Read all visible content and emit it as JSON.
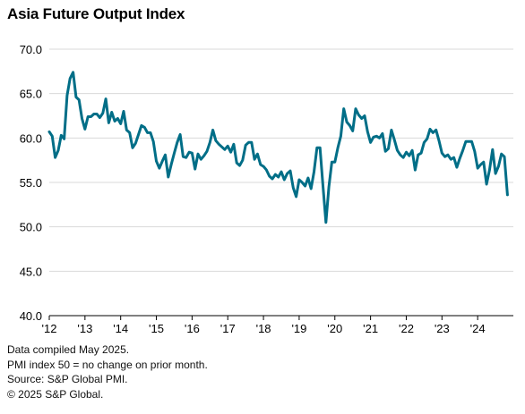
{
  "notes": [
    "Data compiled May 2025.",
    "PMI index 50 = no change on prior month.",
    "Source: S&P Global PMI.",
    "© 2025 S&P Global."
  ],
  "colors": {
    "line": "#006e87",
    "grid": "#d9d9d9",
    "axis": "#000000"
  },
  "chart_data": {
    "type": "line",
    "title": "Asia Future Output Index",
    "xlabel": "",
    "ylabel": "",
    "ylim": [
      40,
      70
    ],
    "xlim": [
      2012.0,
      2025.0
    ],
    "y_ticks": [
      "40.0",
      "45.0",
      "50.0",
      "55.0",
      "60.0",
      "65.0",
      "70.0"
    ],
    "x_ticks": [
      {
        "label": "'12",
        "x": 2012
      },
      {
        "label": "'13",
        "x": 2013
      },
      {
        "label": "'14",
        "x": 2014
      },
      {
        "label": "'15",
        "x": 2015
      },
      {
        "label": "'16",
        "x": 2016
      },
      {
        "label": "'17",
        "x": 2017
      },
      {
        "label": "'18",
        "x": 2018
      },
      {
        "label": "'19",
        "x": 2019
      },
      {
        "label": "'20",
        "x": 2020
      },
      {
        "label": "'21",
        "x": 2021
      },
      {
        "label": "'22",
        "x": 2022
      },
      {
        "label": "'23",
        "x": 2023
      },
      {
        "label": "'24",
        "x": 2024
      }
    ],
    "grid": true,
    "legend": "none",
    "series": [
      {
        "start": "2012-01",
        "frequency": "monthly",
        "values": [
          60.7,
          60.2,
          57.8,
          58.6,
          60.3,
          59.9,
          64.8,
          66.7,
          67.4,
          64.6,
          64.3,
          62.2,
          61.0,
          62.4,
          62.4,
          62.7,
          62.7,
          62.3,
          62.8,
          64.4,
          61.7,
          62.9,
          61.9,
          62.2,
          61.6,
          63.0,
          60.9,
          60.6,
          58.9,
          59.4,
          60.4,
          61.4,
          61.2,
          60.6,
          60.6,
          59.6,
          57.4,
          56.6,
          57.4,
          58.1,
          55.6,
          57.0,
          58.3,
          59.5,
          60.4,
          57.9,
          57.8,
          58.4,
          58.3,
          56.5,
          58.2,
          57.6,
          58.0,
          58.5,
          59.5,
          60.9,
          59.7,
          59.3,
          59.0,
          58.7,
          59.1,
          58.4,
          59.3,
          57.2,
          56.9,
          57.5,
          59.2,
          59.5,
          59.5,
          57.6,
          58.2,
          57.0,
          56.8,
          56.4,
          55.7,
          55.4,
          55.9,
          55.6,
          56.2,
          55.3,
          56.0,
          56.3,
          54.4,
          53.4,
          55.3,
          55.0,
          54.6,
          55.5,
          54.3,
          56.2,
          58.9,
          58.9,
          54.6,
          50.5,
          54.5,
          57.3,
          57.3,
          58.9,
          60.2,
          63.3,
          61.8,
          61.4,
          60.8,
          63.3,
          62.6,
          62.2,
          62.5,
          60.7,
          59.5,
          60.1,
          60.2,
          60.0,
          60.5,
          58.5,
          58.8,
          60.9,
          59.8,
          58.6,
          58.1,
          57.8,
          58.4,
          58.0,
          58.6,
          56.4,
          58.1,
          58.3,
          59.5,
          59.9,
          61.0,
          60.6,
          60.9,
          59.7,
          58.3,
          57.9,
          58.1,
          57.6,
          57.8,
          56.7,
          57.7,
          58.6,
          59.6,
          59.6,
          59.6,
          58.5,
          56.6,
          57.0,
          57.3,
          54.8,
          56.4,
          58.7,
          56.0,
          56.8,
          58.2,
          57.9,
          53.6
        ]
      }
    ]
  }
}
